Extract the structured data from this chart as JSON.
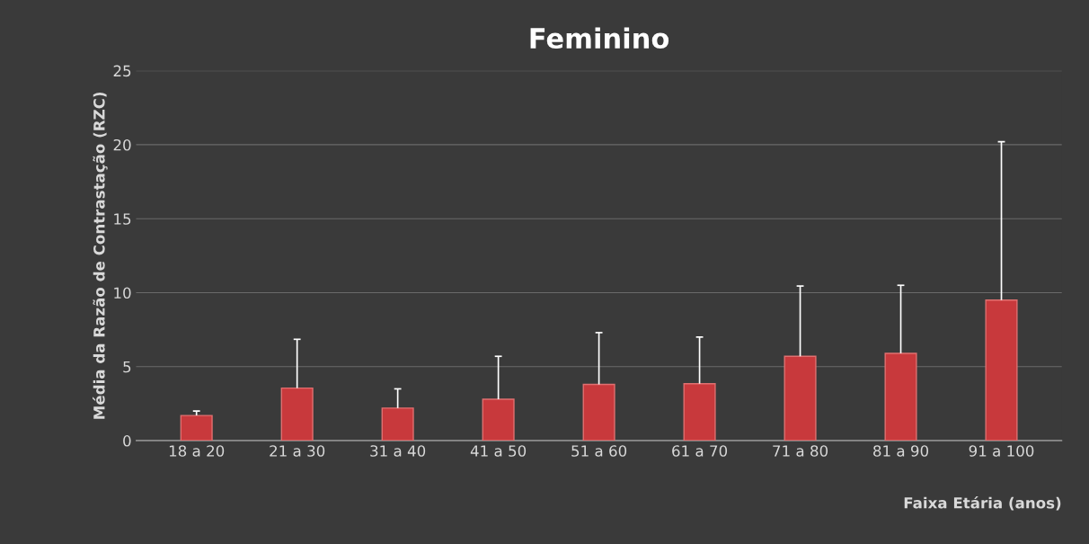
{
  "chart_data": {
    "type": "bar",
    "title": "Feminino",
    "xlabel": "Faixa Etária (anos)",
    "ylabel": "Média da Razão de Contrastação (RZC)",
    "categories": [
      "18 a 20",
      "21 a 30",
      "31 a 40",
      "41 a 50",
      "51 a 60",
      "61 a 70",
      "71 a 80",
      "81 a 90",
      "91 a 100"
    ],
    "values": [
      1.7,
      3.55,
      2.2,
      2.8,
      3.8,
      3.85,
      5.7,
      5.9,
      9.5
    ],
    "errors": [
      [
        1.7,
        2.0
      ],
      [
        3.55,
        6.85
      ],
      [
        2.2,
        3.5
      ],
      [
        2.8,
        5.7
      ],
      [
        3.8,
        7.3
      ],
      [
        3.85,
        7.0
      ],
      [
        5.7,
        10.45
      ],
      [
        5.9,
        10.5
      ],
      [
        9.5,
        20.2
      ]
    ],
    "color": "#c8393c",
    "ylim": [
      0,
      25
    ],
    "yticks": [
      0,
      5,
      10,
      15,
      20,
      25
    ],
    "grid": "y"
  }
}
